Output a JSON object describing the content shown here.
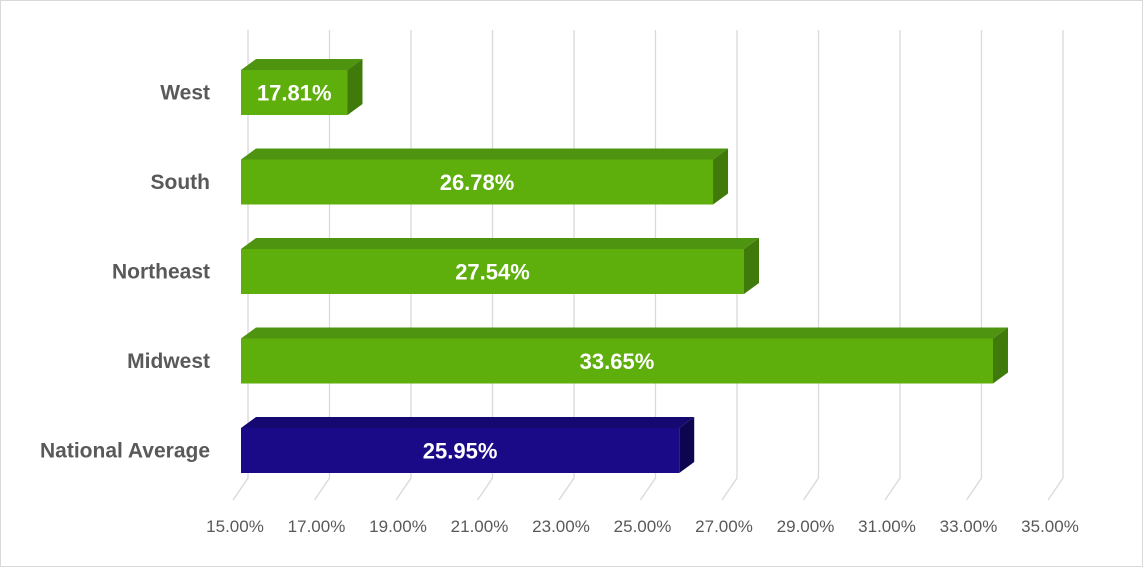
{
  "chart_data": {
    "type": "bar",
    "orientation": "horizontal",
    "style": "3d",
    "title": "",
    "xlabel": "",
    "ylabel": "",
    "categories": [
      "West",
      "South",
      "Northeast",
      "Midwest",
      "National Average"
    ],
    "values": [
      17.81,
      26.78,
      27.54,
      33.65,
      25.95
    ],
    "data_labels": [
      "17.81%",
      "26.78%",
      "27.54%",
      "33.65%",
      "25.95%"
    ],
    "xlim": [
      15,
      35
    ],
    "x_ticks": [
      15,
      17,
      19,
      21,
      23,
      25,
      27,
      29,
      31,
      33,
      35
    ],
    "x_tick_labels": [
      "15.00%",
      "17.00%",
      "19.00%",
      "21.00%",
      "23.00%",
      "25.00%",
      "27.00%",
      "29.00%",
      "31.00%",
      "33.00%",
      "35.00%"
    ],
    "grid": true,
    "legend": "none",
    "colors": {
      "region_front": "#5eae0c",
      "region_top": "#4e9410",
      "region_side": "#3f7a0a",
      "average_front": "#1b0a87",
      "average_top": "#150870",
      "average_side": "#0e0550",
      "gridline": "#d9d9d9",
      "text": "#595959"
    }
  }
}
